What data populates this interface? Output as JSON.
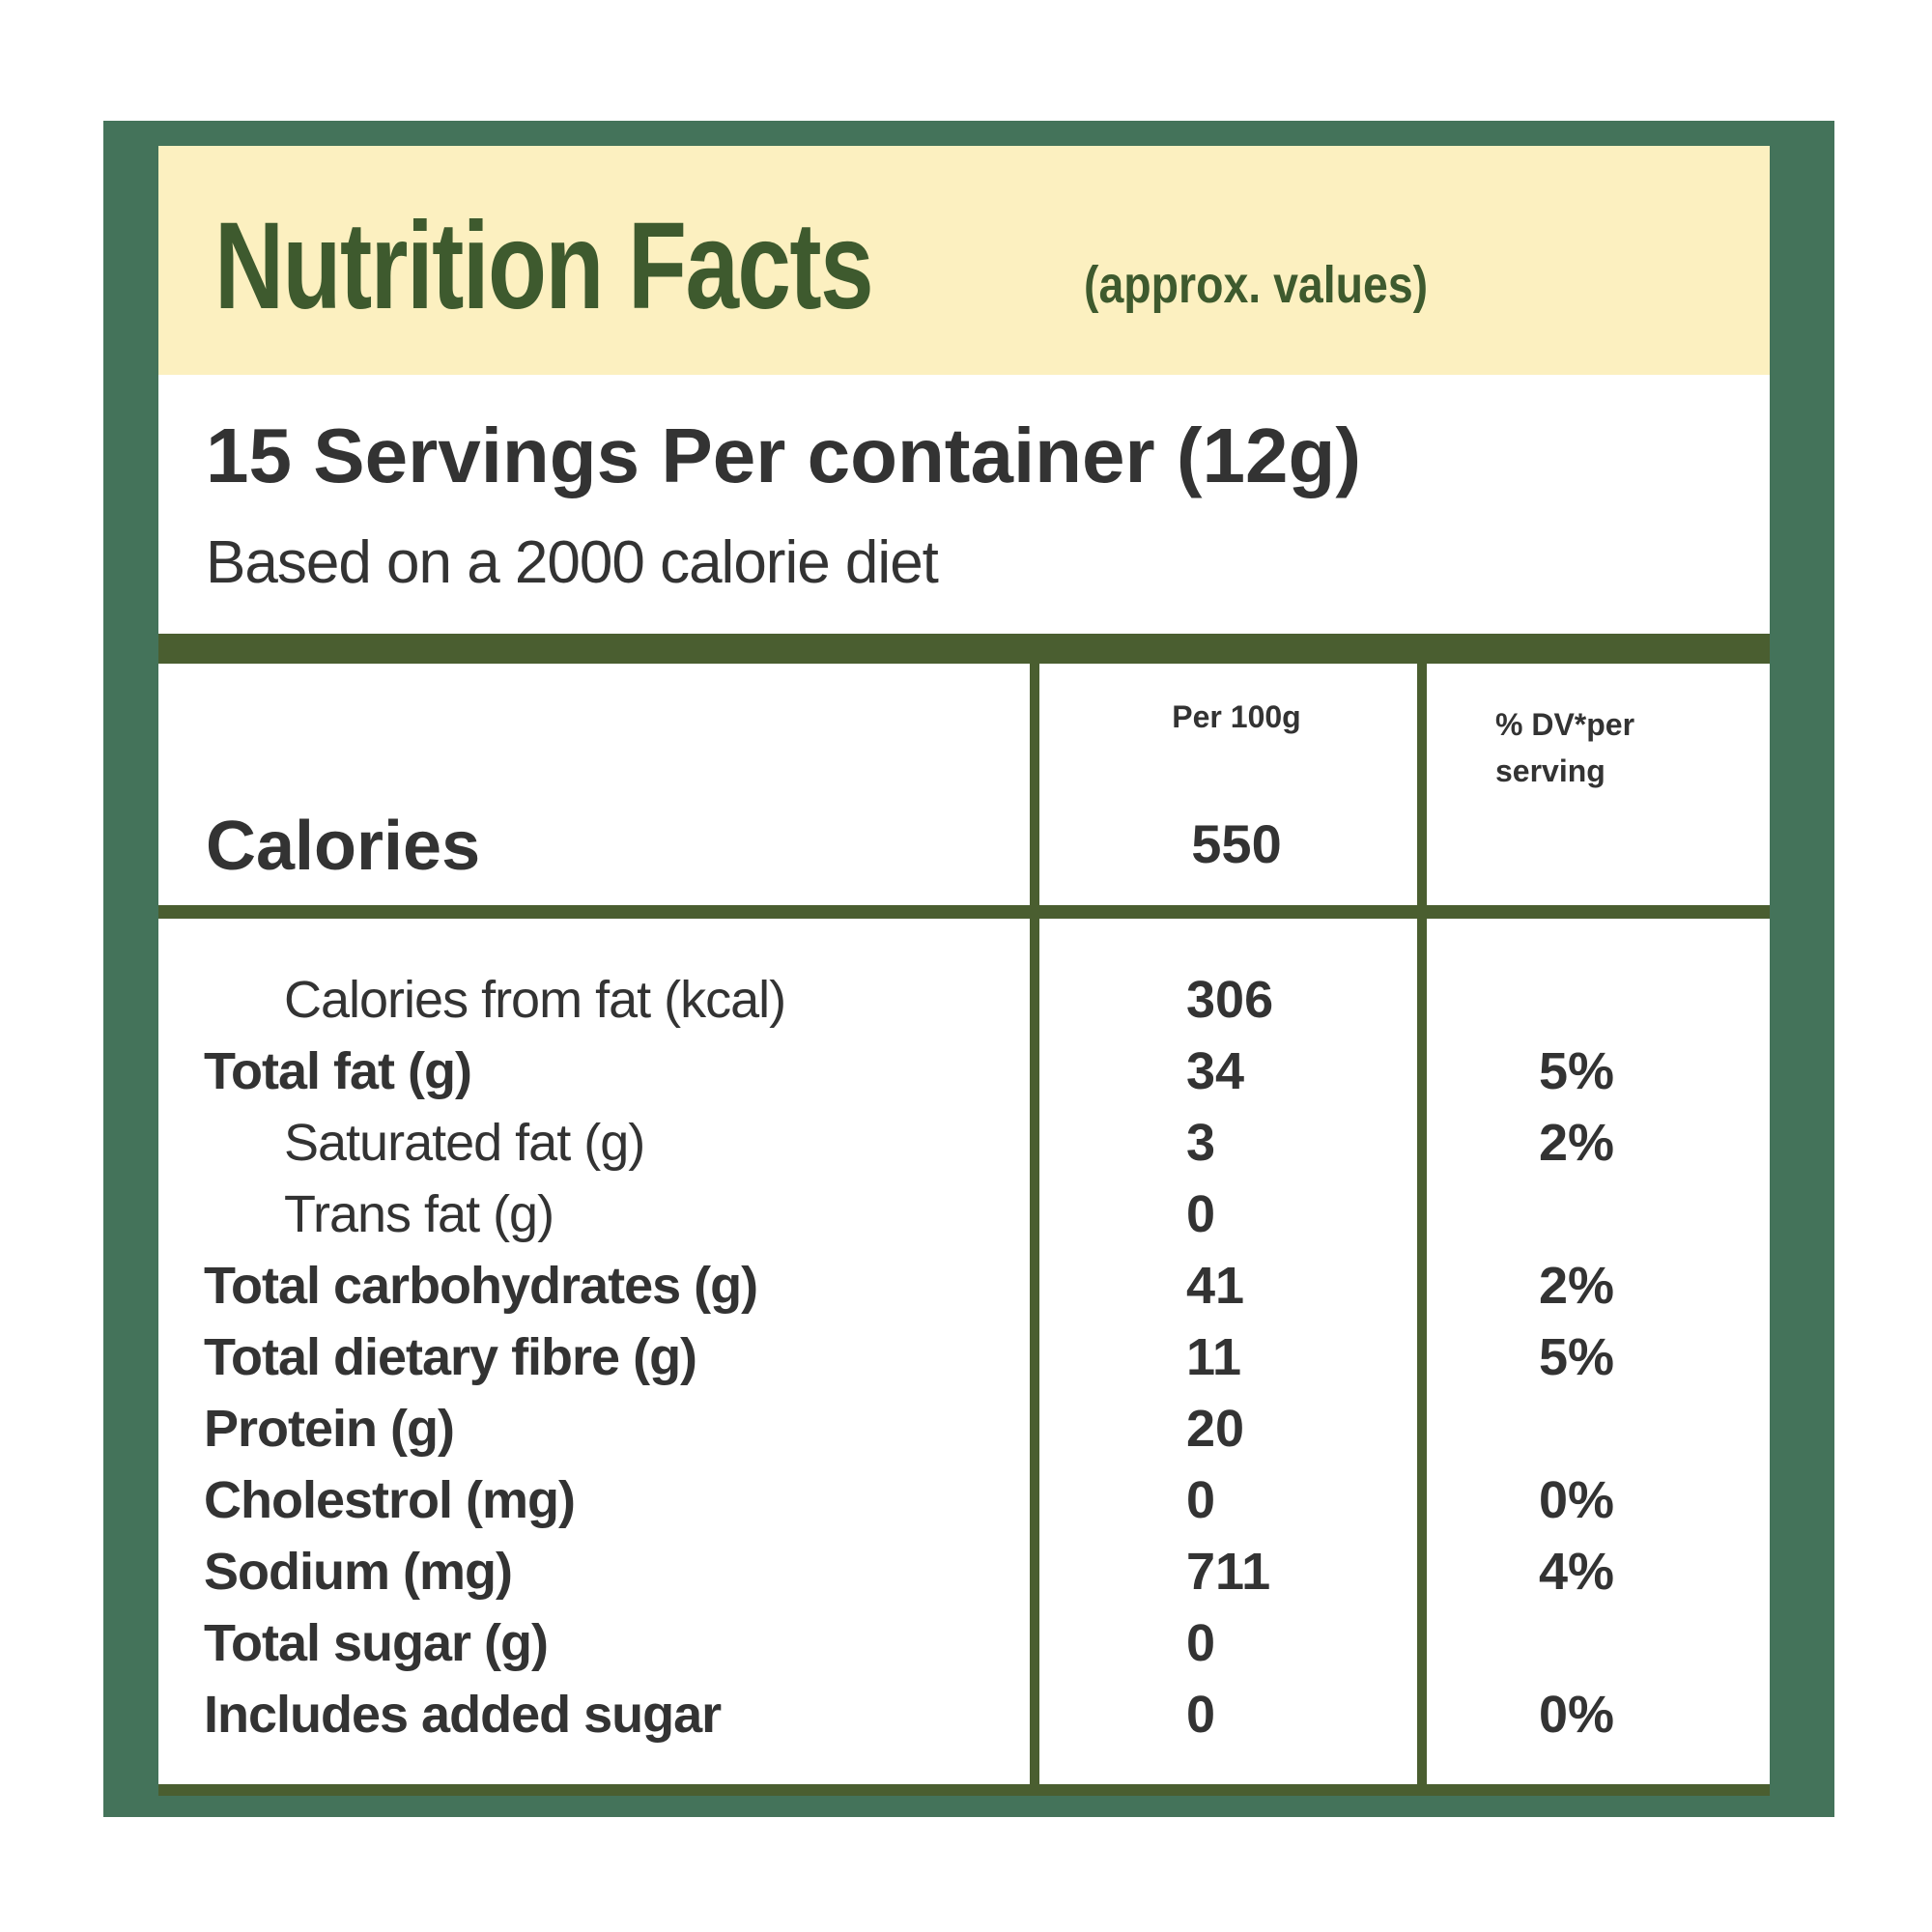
{
  "header": {
    "title": "Nutrition Facts",
    "subtitle": "(approx. values)"
  },
  "servings": "15 Servings Per container (12g)",
  "basis": "Based on a 2000 calorie diet",
  "table": {
    "columns": [
      "Per 100g",
      "% DV*per serving"
    ],
    "calories": {
      "label": "Calories",
      "value": 550
    },
    "rows": [
      {
        "label": "Calories from fat (kcal)",
        "value": 306,
        "level": 1
      },
      {
        "label": "Total fat (g)",
        "value": 34,
        "dv": "5%"
      },
      {
        "label": "Saturated fat (g)",
        "value": 3,
        "dv": "2%",
        "level": 1
      },
      {
        "label": "Trans fat (g)",
        "value": 0,
        "level": 1
      },
      {
        "label": "Total carbohydrates (g)",
        "value": 41,
        "dv": "2%"
      },
      {
        "label": "Total dietary fibre (g)",
        "value": 11,
        "dv": "5%"
      },
      {
        "label": "Protein (g)",
        "value": 20
      },
      {
        "label": "Cholestrol (mg)",
        "value": 0,
        "dv": "0%"
      },
      {
        "label": "Sodium (mg)",
        "value": 711,
        "dv": "4%"
      },
      {
        "label": "Total sugar (g)",
        "value": 0
      },
      {
        "label": "Includes added sugar",
        "value": 0,
        "dv": "0%"
      }
    ]
  }
}
